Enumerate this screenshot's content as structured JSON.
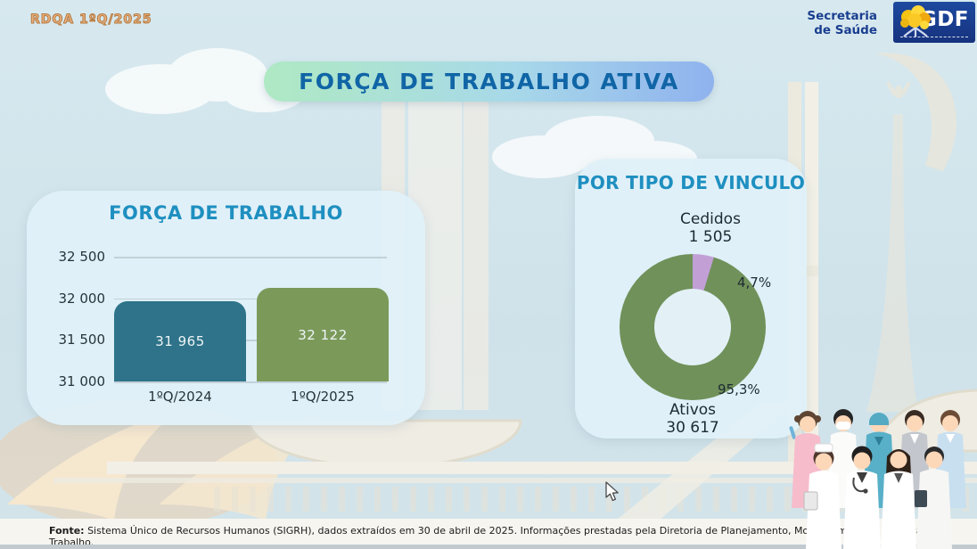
{
  "page": {
    "slide_tag": "RDQA 1ºQ/2025"
  },
  "header": {
    "org_name_line1": "Secretaria",
    "org_name_line2": "de Saúde",
    "logo_text": "GDF"
  },
  "title_banner": "FORÇA DE TRABALHO ATIVA",
  "chart_data": [
    {
      "type": "bar",
      "title": "FORÇA DE TRABALHO",
      "categories": [
        "1ºQ/2024",
        "1ºQ/2025"
      ],
      "values": [
        31965,
        32122
      ],
      "value_labels": [
        "31 965",
        "32 122"
      ],
      "bar_colors": [
        "#2e7389",
        "#7b9a5a"
      ],
      "xlabel": "",
      "ylabel": "",
      "ylim": [
        31000,
        32500
      ],
      "yticks": [
        31000,
        31500,
        32000,
        32500
      ],
      "ytick_labels": [
        "31 000",
        "31 500",
        "32 000",
        "32 500"
      ],
      "grid": true,
      "legend": "none"
    },
    {
      "type": "pie",
      "subtype": "donut",
      "title": "POR TIPO DE VINCULO",
      "slices": [
        {
          "label": "Ativos",
          "value": 30617,
          "value_label": "30 617",
          "pct": 95.3,
          "pct_label": "95,3%",
          "color": "#70915a"
        },
        {
          "label": "Cedidos",
          "value": 1505,
          "value_label": "1 505",
          "pct": 4.7,
          "pct_label": "4,7%",
          "color": "#c2a0d6"
        }
      ],
      "legend": "none"
    }
  ],
  "footer": {
    "source_bold": "Fonte:",
    "source_text": " Sistema Único de Recursos Humanos (SIGRH), dados extraídos em 30 de abril de 2025. Informações prestadas pela Diretoria de Planejamento, Monitoramento e Avaliação do Trabalho."
  },
  "colors": {
    "accent_title": "#1065a6",
    "accent_card_title": "#1e8fc0",
    "bar_2024": "#2e7389",
    "bar_2025": "#7b9a5a",
    "donut_ativos": "#70915a",
    "donut_cedidos": "#c2a0d6",
    "banner_gradient_start": "#aee9c3",
    "banner_gradient_end": "#8fb2ee"
  }
}
